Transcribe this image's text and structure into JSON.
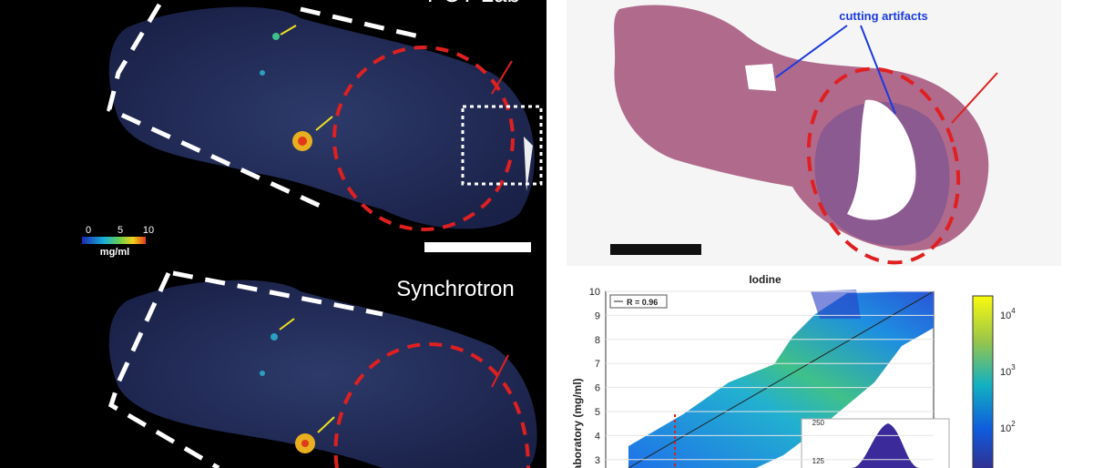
{
  "left_panel": {
    "top_label": "PCT Lab",
    "colorbar": {
      "ticks": [
        "0",
        "5",
        "10"
      ],
      "unit": "mg/ml"
    },
    "bottom_label": "Synchrotron"
  },
  "histology": {
    "annotation": "cutting artifacts"
  },
  "scatter_panel": {
    "title": "Iodine",
    "y_label": "Laboratory (mg/ml)",
    "yticks": [
      10,
      9,
      8,
      7,
      6,
      5,
      4,
      3
    ],
    "legend": "R = 0.96",
    "colorbar_ticks": [
      {
        "base": "10",
        "exp": "4"
      },
      {
        "base": "10",
        "exp": "3"
      },
      {
        "base": "10",
        "exp": "2"
      }
    ],
    "inset_ticks": [
      250,
      125
    ]
  }
}
